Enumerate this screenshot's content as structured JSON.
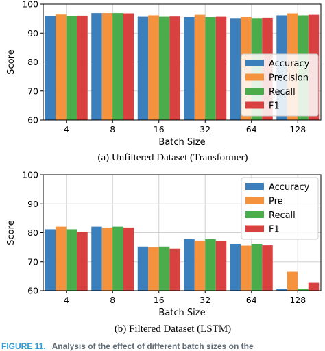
{
  "colors": {
    "accuracy": "#3b80bd",
    "precision": "#f5923e",
    "recall": "#4aac4a",
    "f1": "#d8413f",
    "footer_accent": "#2f9ad6",
    "footer_text": "#5e6a74"
  },
  "footer": {
    "label": "FIGURE 11.",
    "text": "Analysis of the effect of different batch sizes on the"
  },
  "chart_data": [
    {
      "type": "bar",
      "caption": "(a) Unfiltered Dataset (Transformer)",
      "xlabel": "Batch Size",
      "ylabel": "Score",
      "ylim": [
        60,
        100
      ],
      "yticks": [
        60,
        70,
        80,
        90,
        100
      ],
      "grid": true,
      "legend_position": "lower-right",
      "categories": [
        "4",
        "8",
        "16",
        "32",
        "64",
        "128"
      ],
      "series": [
        {
          "name": "Accuracy",
          "color_key": "accuracy",
          "values": [
            95.8,
            96.9,
            95.6,
            95.5,
            95.2,
            96.1
          ]
        },
        {
          "name": "Precision",
          "color_key": "precision",
          "values": [
            96.4,
            96.9,
            96.1,
            96.3,
            95.5,
            96.8
          ]
        },
        {
          "name": "Recall",
          "color_key": "recall",
          "values": [
            95.8,
            96.9,
            95.6,
            95.5,
            95.2,
            96.1
          ]
        },
        {
          "name": "F1",
          "color_key": "f1",
          "values": [
            96.0,
            96.8,
            95.7,
            95.6,
            95.3,
            96.3
          ]
        }
      ]
    },
    {
      "type": "bar",
      "caption": "(b) Filtered Dataset (LSTM)",
      "xlabel": "Batch Size",
      "ylabel": "Score",
      "ylim": [
        60,
        100
      ],
      "yticks": [
        60,
        70,
        80,
        90,
        100
      ],
      "grid": true,
      "legend_position": "upper-right",
      "categories": [
        "4",
        "8",
        "16",
        "32",
        "64",
        "128"
      ],
      "series": [
        {
          "name": "Accuracy",
          "color_key": "accuracy",
          "values": [
            81.2,
            82.1,
            75.2,
            77.8,
            76.1,
            60.7
          ]
        },
        {
          "name": "Pre",
          "color_key": "precision",
          "values": [
            82.1,
            81.8,
            75.1,
            77.3,
            75.5,
            66.5
          ]
        },
        {
          "name": "Recall",
          "color_key": "recall",
          "values": [
            81.2,
            82.1,
            75.2,
            77.8,
            76.1,
            60.7
          ]
        },
        {
          "name": "F1",
          "color_key": "f1",
          "values": [
            80.3,
            81.8,
            74.5,
            77.1,
            75.6,
            62.7
          ]
        }
      ]
    }
  ]
}
